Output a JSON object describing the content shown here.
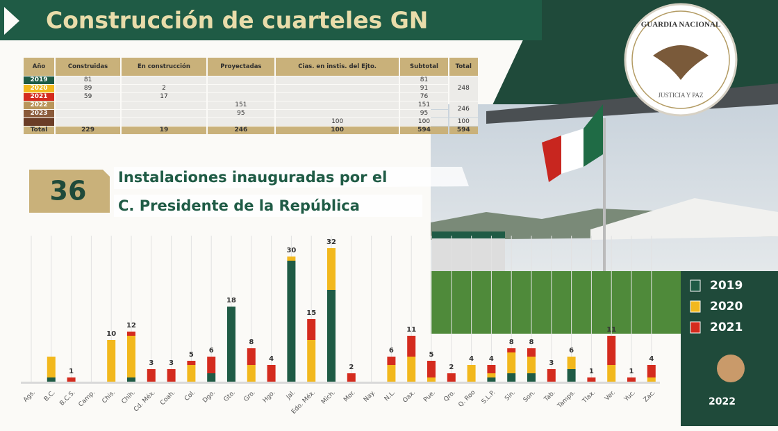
{
  "header": {
    "title": "Construcción de cuarteles GN"
  },
  "table": {
    "columns": [
      "Año",
      "Construidas",
      "En construcción",
      "Proyectadas",
      "Cias. en instis. del Ejto.",
      "Subtotal",
      "Total"
    ],
    "rows": [
      {
        "year": 2019,
        "color": "#1f5b45",
        "cells": [
          81,
          null,
          null,
          null,
          81
        ],
        "total": 248
      },
      {
        "year": 2020,
        "color": "#f2b81d",
        "cells": [
          89,
          2,
          null,
          null,
          91
        ],
        "total": null
      },
      {
        "year": 2021,
        "color": "#d42b1e",
        "cells": [
          59,
          17,
          null,
          null,
          76
        ],
        "total": null
      },
      {
        "year": 2022,
        "color": "#b9955a",
        "cells": [
          null,
          null,
          151,
          null,
          151
        ],
        "total": 246
      },
      {
        "year": 2023,
        "color": "#8a5a3a",
        "cells": [
          null,
          null,
          95,
          null,
          95
        ],
        "total": null
      },
      {
        "year": null,
        "color": "#6b3d27",
        "cells": [
          null,
          null,
          null,
          100,
          100
        ],
        "total": 100
      }
    ],
    "footer": {
      "label": "Total",
      "cells": [
        229,
        19,
        246,
        100,
        594
      ],
      "total": 594
    }
  },
  "badge": {
    "number": 36,
    "line1": "Instalaciones inauguradas por el",
    "line2": "C. Presidente de la República"
  },
  "emblem": {
    "top": "GUARDIA NACIONAL",
    "bottom": "JUSTICIA Y PAZ"
  },
  "logo": {
    "year": "2022"
  },
  "chart_data": {
    "type": "stacked_bar",
    "categories": [
      "Ags.",
      "B.C.",
      "B.C.S.",
      "Camp.",
      "Chis.",
      "Chih.",
      "Cd. Méx.",
      "Coah.",
      "Col.",
      "Dgo.",
      "Gto.",
      "Gro.",
      "Hgo.",
      "Jal.",
      "Edo. Méx.",
      "Mich.",
      "Mor.",
      "Nay.",
      "N.L.",
      "Oax.",
      "Pue.",
      "Qro.",
      "Q. Roo",
      "S.L.P.",
      "Sin.",
      "Son.",
      "Tab.",
      "Tamps.",
      "Tlax.",
      "Ver.",
      "Yuc.",
      "Zac."
    ],
    "series": [
      {
        "name": "2019",
        "color": "#1f5b45",
        "values": [
          0,
          1,
          0,
          0,
          0,
          1,
          0,
          0,
          0,
          2,
          18,
          0,
          0,
          29,
          0,
          22,
          0,
          0,
          0,
          0,
          0,
          0,
          0,
          1,
          2,
          2,
          0,
          3,
          0,
          0,
          0,
          0
        ]
      },
      {
        "name": "2020",
        "color": "#f2b81d",
        "values": [
          0,
          5,
          0,
          0,
          10,
          10,
          0,
          0,
          4,
          0,
          0,
          4,
          0,
          1,
          10,
          10,
          0,
          0,
          4,
          6,
          1,
          0,
          4,
          1,
          5,
          4,
          0,
          3,
          0,
          4,
          0,
          1
        ]
      },
      {
        "name": "2021",
        "color": "#d42b1e",
        "values": [
          0,
          0,
          1,
          0,
          0,
          1,
          3,
          3,
          1,
          4,
          0,
          4,
          4,
          0,
          5,
          0,
          2,
          0,
          2,
          5,
          4,
          2,
          0,
          2,
          1,
          2,
          3,
          0,
          1,
          7,
          1,
          3
        ]
      }
    ],
    "totals": [
      null,
      null,
      1,
      null,
      10,
      12,
      3,
      3,
      5,
      6,
      18,
      8,
      4,
      30,
      15,
      32,
      2,
      null,
      6,
      11,
      5,
      2,
      4,
      4,
      8,
      8,
      3,
      6,
      1,
      11,
      1,
      4
    ],
    "ylim": [
      0,
      35
    ]
  }
}
